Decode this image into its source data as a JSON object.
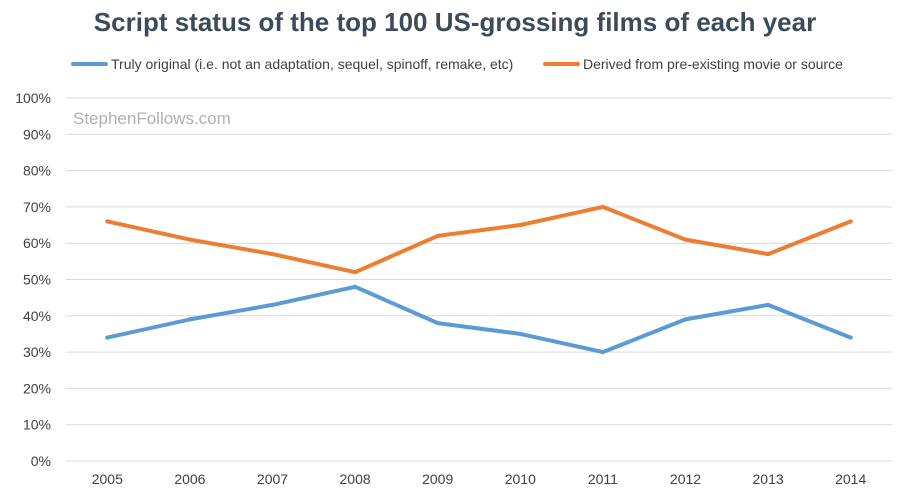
{
  "chart_data": {
    "type": "line",
    "title": "Script status of the top 100 US-grossing films of each year",
    "watermark": "StephenFollows.com",
    "categories": [
      "2005",
      "2006",
      "2007",
      "2008",
      "2009",
      "2010",
      "2011",
      "2012",
      "2013",
      "2014"
    ],
    "series": [
      {
        "name": "Truly original (i.e. not an adaptation, sequel, spinoff, remake, etc)",
        "color": "#5b9bd5",
        "values": [
          34,
          39,
          43,
          48,
          38,
          35,
          30,
          39,
          43,
          34
        ]
      },
      {
        "name": "Derived from pre-existing movie or source",
        "color": "#ed7d31",
        "values": [
          66,
          61,
          57,
          52,
          62,
          65,
          70,
          61,
          57,
          66
        ]
      }
    ],
    "ylim": [
      0,
      100
    ],
    "yticks": [
      0,
      10,
      20,
      30,
      40,
      50,
      60,
      70,
      80,
      90,
      100
    ],
    "ytick_labels": [
      "0%",
      "10%",
      "20%",
      "30%",
      "40%",
      "50%",
      "60%",
      "70%",
      "80%",
      "90%",
      "100%"
    ],
    "xlabel": "",
    "ylabel": "",
    "grid": true,
    "legend_position": "top"
  }
}
